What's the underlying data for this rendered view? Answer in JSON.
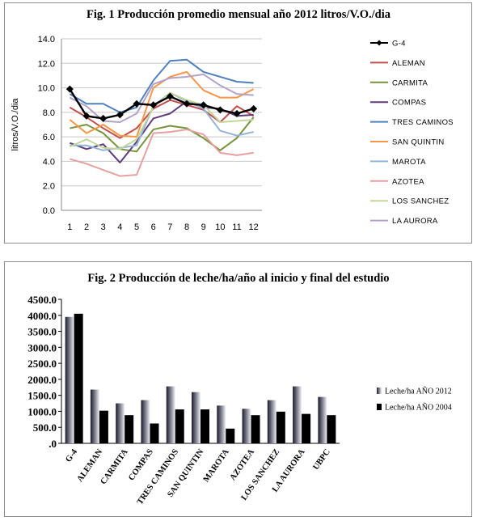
{
  "chart_data": [
    {
      "type": "line",
      "title": "Fig. 1  Producción promedio mensual  año 2012 litros/V.O./dia",
      "xlabel": "",
      "ylabel": "litros/V.O./dia",
      "x": [
        1,
        2,
        3,
        4,
        5,
        6,
        7,
        8,
        9,
        10,
        11,
        12
      ],
      "ylim": [
        0,
        14
      ],
      "yticks": [
        "0.0",
        "2.0",
        "4.0",
        "6.0",
        "8.0",
        "10.0",
        "12.0",
        "14.0"
      ],
      "grid": true,
      "legend": "right",
      "series": [
        {
          "name": "G-4",
          "color": "#000000",
          "marker": "diamond",
          "values": [
            9.9,
            7.7,
            7.5,
            7.8,
            8.7,
            8.6,
            9.3,
            8.7,
            8.6,
            8.2,
            7.9,
            8.3
          ]
        },
        {
          "name": "ALEMAN",
          "color": "#C0504D",
          "values": [
            8.4,
            7.6,
            6.7,
            5.9,
            6.7,
            8.3,
            9.0,
            8.6,
            8.2,
            7.2,
            8.5,
            7.7
          ]
        },
        {
          "name": "CARMITA",
          "color": "#77933C",
          "values": [
            6.7,
            7.0,
            6.3,
            5.0,
            4.8,
            6.6,
            6.9,
            6.7,
            5.9,
            4.9,
            5.9,
            7.6
          ]
        },
        {
          "name": "COMPAS",
          "color": "#5F3C7C",
          "values": [
            5.5,
            5.0,
            5.4,
            3.9,
            5.6,
            7.5,
            7.9,
            8.9,
            8.4,
            8.3,
            7.7,
            7.8
          ]
        },
        {
          "name": "TRES CAMINOS",
          "color": "#4F81BD",
          "values": [
            9.5,
            8.7,
            8.7,
            8.0,
            8.4,
            10.6,
            12.2,
            12.3,
            11.3,
            10.9,
            10.5,
            10.4
          ]
        },
        {
          "name": "SAN QUINTIN",
          "color": "#F79646",
          "values": [
            7.4,
            6.3,
            7.0,
            6.1,
            6.0,
            10.0,
            10.9,
            11.3,
            9.8,
            9.2,
            9.2,
            9.9
          ]
        },
        {
          "name": "MAROTA",
          "color": "#93B3D7",
          "values": [
            5.3,
            5.3,
            4.9,
            5.1,
            5.3,
            8.5,
            9.6,
            8.9,
            8.3,
            6.5,
            6.1,
            6.4
          ]
        },
        {
          "name": "AZOTEA",
          "color": "#E6A0A0",
          "values": [
            4.2,
            3.8,
            3.3,
            2.8,
            2.9,
            6.3,
            6.4,
            6.6,
            6.2,
            4.7,
            4.5,
            4.7
          ]
        },
        {
          "name": "LOS SANCHEZ",
          "color": "#C3D69B",
          "values": [
            5.2,
            5.8,
            5.1,
            5.0,
            5.8,
            8.4,
            9.6,
            9.0,
            8.6,
            7.2,
            7.3,
            7.4
          ]
        },
        {
          "name": "LA AURORA",
          "color": "#B3A2C7",
          "values": [
            9.2,
            8.5,
            7.3,
            7.2,
            7.9,
            10.3,
            10.8,
            10.9,
            11.1,
            10.2,
            9.5,
            9.4
          ]
        }
      ]
    },
    {
      "type": "bar",
      "title": "Fig. 2  Producción de leche/ha/año al inicio y final del estudio",
      "xlabel": "",
      "ylabel": "",
      "categories": [
        "G-4",
        "ALEMAN",
        "CARMITA",
        "COMPAS",
        "TRES CAMINOS",
        "SAN QUINTIN",
        "MAROTA",
        "AZOTEA",
        "LOS SANCHEZ",
        "LA AURORA",
        "UBPC"
      ],
      "ylim": [
        0,
        4500
      ],
      "yticks": [
        ".0",
        "500.0",
        "1000.0",
        "1500.0",
        "2000.0",
        "2500.0",
        "3000.0",
        "3500.0",
        "4000.0",
        "4500.0"
      ],
      "grid": false,
      "legend": "right",
      "series": [
        {
          "name": "Leche/ha AÑO 2012",
          "color": "gradient-gray",
          "values": [
            3950,
            1680,
            1250,
            1350,
            1780,
            1600,
            1180,
            1080,
            1350,
            1780,
            1450
          ]
        },
        {
          "name": "Leche/ha AÑO 2004",
          "color": "#000000",
          "values": [
            4050,
            1020,
            880,
            620,
            1060,
            1060,
            460,
            880,
            990,
            920,
            880
          ]
        }
      ]
    }
  ]
}
